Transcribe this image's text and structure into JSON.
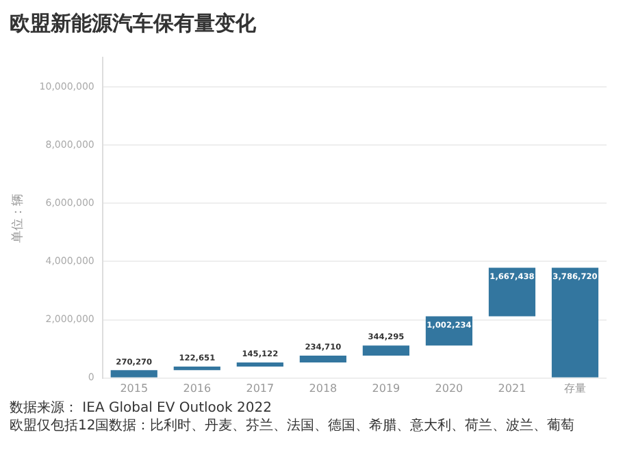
{
  "chart_data": {
    "type": "bar",
    "title": "欧盟新能源汽车保有量变化",
    "ylabel": "单位：辆",
    "categories": [
      "2015",
      "2016",
      "2017",
      "2018",
      "2019",
      "2020",
      "2021",
      "存量"
    ],
    "values": [
      270270,
      122651,
      145122,
      234710,
      344295,
      1002234,
      1667438,
      3786720
    ],
    "base": [
      0,
      270270,
      392921,
      538043,
      772753,
      1117048,
      2119282,
      0
    ],
    "color": "#33769f",
    "value_labels": [
      "270,270",
      "122,651",
      "145,122",
      "234,710",
      "344,295",
      "1,002,234",
      "1,667,438",
      "3,786,720"
    ],
    "ylim": [
      0,
      11000000
    ],
    "yticks": [
      0,
      {
        "value": 2000000,
        "label": "2,000,000"
      },
      {
        "value": 4000000,
        "label": "4,000,000"
      },
      {
        "value": 6000000,
        "label": "6,000,000"
      },
      {
        "value": 8000000,
        "label": "8,000,000"
      },
      {
        "value": 10000000,
        "label": "10,000,000"
      }
    ],
    "grid": "y",
    "annotations": [
      "数据来源： IEA Global EV Outlook 2022",
      "欧盟仅包括12国数据：比利时、丹麦、芬兰、法国、德国、希腊、意大利、荷兰、波兰、葡萄"
    ]
  }
}
